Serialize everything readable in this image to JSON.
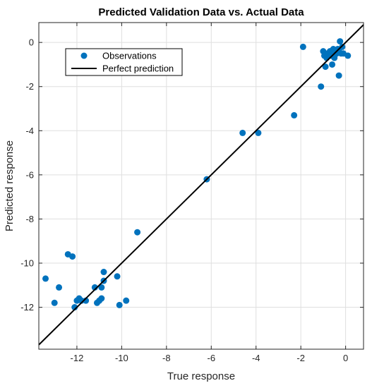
{
  "chart_data": {
    "type": "scatter",
    "title": "Predicted Validation Data vs. Actual Data",
    "xlabel": "True response",
    "ylabel": "Predicted response",
    "xlim": [
      -13.7,
      0.8
    ],
    "ylim": [
      -13.9,
      0.9
    ],
    "xticks": [
      -12,
      -10,
      -8,
      -6,
      -4,
      -2,
      0
    ],
    "yticks": [
      -12,
      -10,
      -8,
      -6,
      -4,
      -2,
      0
    ],
    "xtick_labels": [
      "-12",
      "-10",
      "-8",
      "-6",
      "-4",
      "-2",
      "0"
    ],
    "ytick_labels": [
      "-12",
      "-10",
      "-8",
      "-6",
      "-4",
      "-2",
      "0"
    ],
    "grid": true,
    "legend_position": "top-left",
    "colors": {
      "observations": "#0072BD",
      "perfect": "#000000",
      "grid": "#dfdfdf",
      "axis": "#262626"
    },
    "series": [
      {
        "name": "Observations",
        "kind": "scatter",
        "x": [
          -13.4,
          -13.0,
          -12.8,
          -12.4,
          -12.2,
          -12.1,
          -12.0,
          -11.9,
          -11.8,
          -11.6,
          -11.2,
          -11.1,
          -11.0,
          -10.9,
          -10.8,
          -10.9,
          -10.8,
          -10.2,
          -10.1,
          -9.8,
          -9.3,
          -6.2,
          -4.6,
          -3.9,
          -2.3,
          -1.9,
          -1.1,
          -1.0,
          -0.95,
          -0.9,
          -0.85,
          -0.8,
          -0.75,
          -0.7,
          -0.65,
          -0.6,
          -0.55,
          -0.5,
          -0.45,
          -0.4,
          -0.35,
          -0.3,
          -0.25,
          -0.2,
          -0.15,
          -0.1,
          0.1,
          -0.6,
          -0.9,
          -0.3,
          -0.7,
          -0.5
        ],
        "y": [
          -10.7,
          -11.8,
          -11.1,
          -9.6,
          -9.7,
          -12.0,
          -11.7,
          -11.6,
          -11.7,
          -11.7,
          -11.1,
          -11.8,
          -11.7,
          -11.1,
          -10.8,
          -11.6,
          -10.4,
          -10.6,
          -11.9,
          -11.7,
          -8.6,
          -6.2,
          -4.1,
          -4.1,
          -3.3,
          -0.2,
          -2.0,
          -0.4,
          -0.6,
          -0.5,
          -0.7,
          -0.6,
          -0.5,
          -0.4,
          -0.6,
          -0.5,
          -0.3,
          -0.6,
          -0.4,
          -0.5,
          -0.3,
          -0.4,
          0.05,
          -0.5,
          -0.2,
          -0.5,
          -0.6,
          -1.0,
          -1.1,
          -1.5,
          -0.5,
          -0.7
        ]
      },
      {
        "name": "Perfect prediction",
        "kind": "line",
        "x": [
          -13.7,
          0.8
        ],
        "y": [
          -13.7,
          0.8
        ]
      }
    ]
  }
}
